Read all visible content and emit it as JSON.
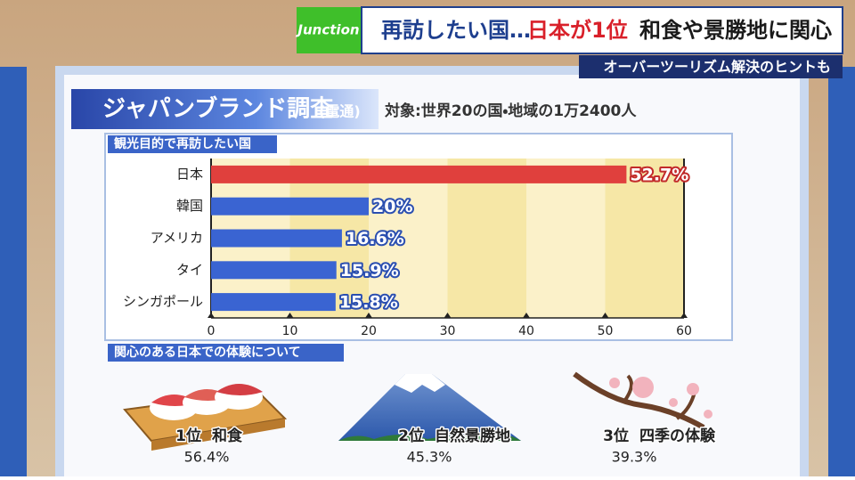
{
  "header": {
    "logo": "Junction",
    "headline_a": "再訪したい国…",
    "headline_b": "日本が1位",
    "headline_c": "和食や景勝地に関心",
    "subheadline": "オーバーツーリズム解決のヒントも"
  },
  "board": {
    "title": "ジャパンブランド調査",
    "source": "(電通)",
    "target": "対象:世界20の国・地域の1万2400人"
  },
  "chart_data": {
    "type": "bar",
    "orientation": "horizontal",
    "title": "観光目的で再訪したい国",
    "categories": [
      "日本",
      "韓国",
      "アメリカ",
      "タイ",
      "シンガポール"
    ],
    "values": [
      52.7,
      20,
      16.6,
      15.9,
      15.8
    ],
    "value_labels": [
      "52.7%",
      "20%",
      "16.6%",
      "15.9%",
      "15.8%"
    ],
    "colors": [
      "#e0403d",
      "#3a64d2",
      "#3a64d2",
      "#3a64d2",
      "#3a64d2"
    ],
    "xlim": [
      0,
      60
    ],
    "xticks": [
      0,
      10,
      20,
      30,
      40,
      50,
      60
    ],
    "grid": true
  },
  "experiences": {
    "title": "関心のある日本での体験について",
    "items": [
      {
        "rank": "1位",
        "label": "和食",
        "share": "56.4%"
      },
      {
        "rank": "2位",
        "label": "自然景勝地",
        "share": "45.3%"
      },
      {
        "rank": "3位",
        "label": "四季の体験",
        "share": "39.3%"
      }
    ]
  }
}
